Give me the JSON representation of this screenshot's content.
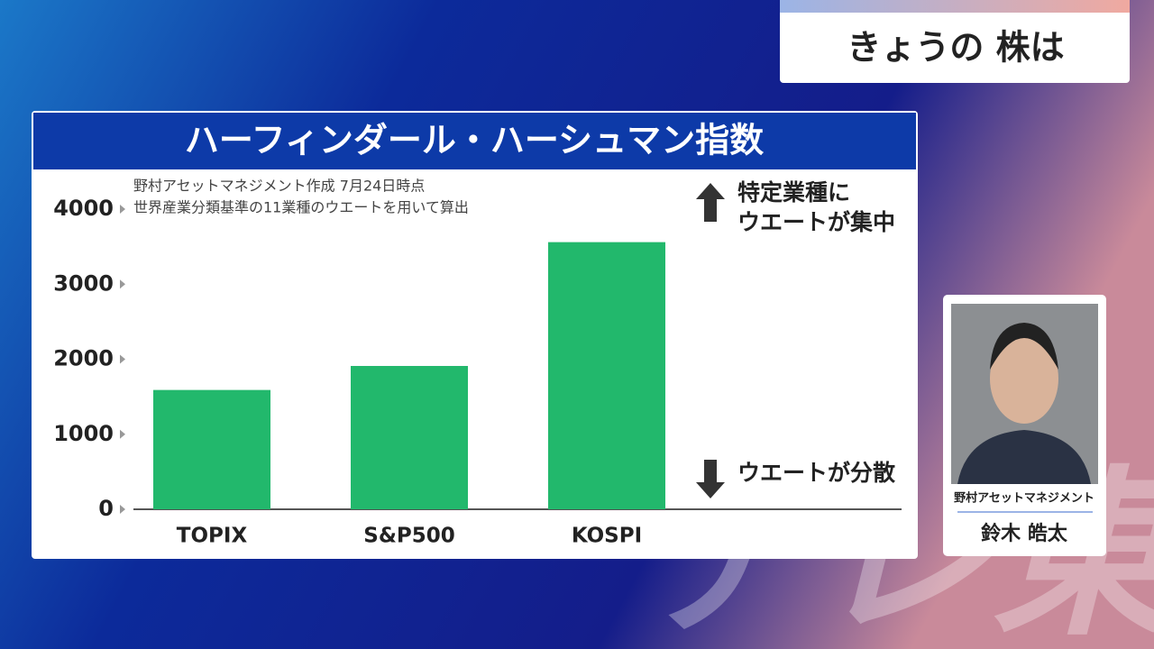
{
  "header": {
    "title": "きょうの 株は"
  },
  "chart_data": {
    "type": "bar",
    "title": "ハーフィンダール・ハーシュマン指数",
    "notes": [
      "野村アセットマネジメント作成 7月24日時点",
      "世界産業分類基準の11業種のウエートを用いて算出"
    ],
    "annotations": [
      "特定業種に",
      "ウエートが集中",
      "ウエートが分散"
    ],
    "categories": [
      "TOPIX",
      "S&P500",
      "KOSPI"
    ],
    "values": [
      1590,
      1910,
      3560
    ],
    "color": "#22b86c",
    "ylim": [
      0,
      4000
    ],
    "yticks": [
      0,
      1000,
      2000,
      3000,
      4000
    ],
    "grid": false
  },
  "guest": {
    "affiliation": "野村アセットマネジメント",
    "name": "鈴木 皓太"
  },
  "watermark": "テレ東"
}
